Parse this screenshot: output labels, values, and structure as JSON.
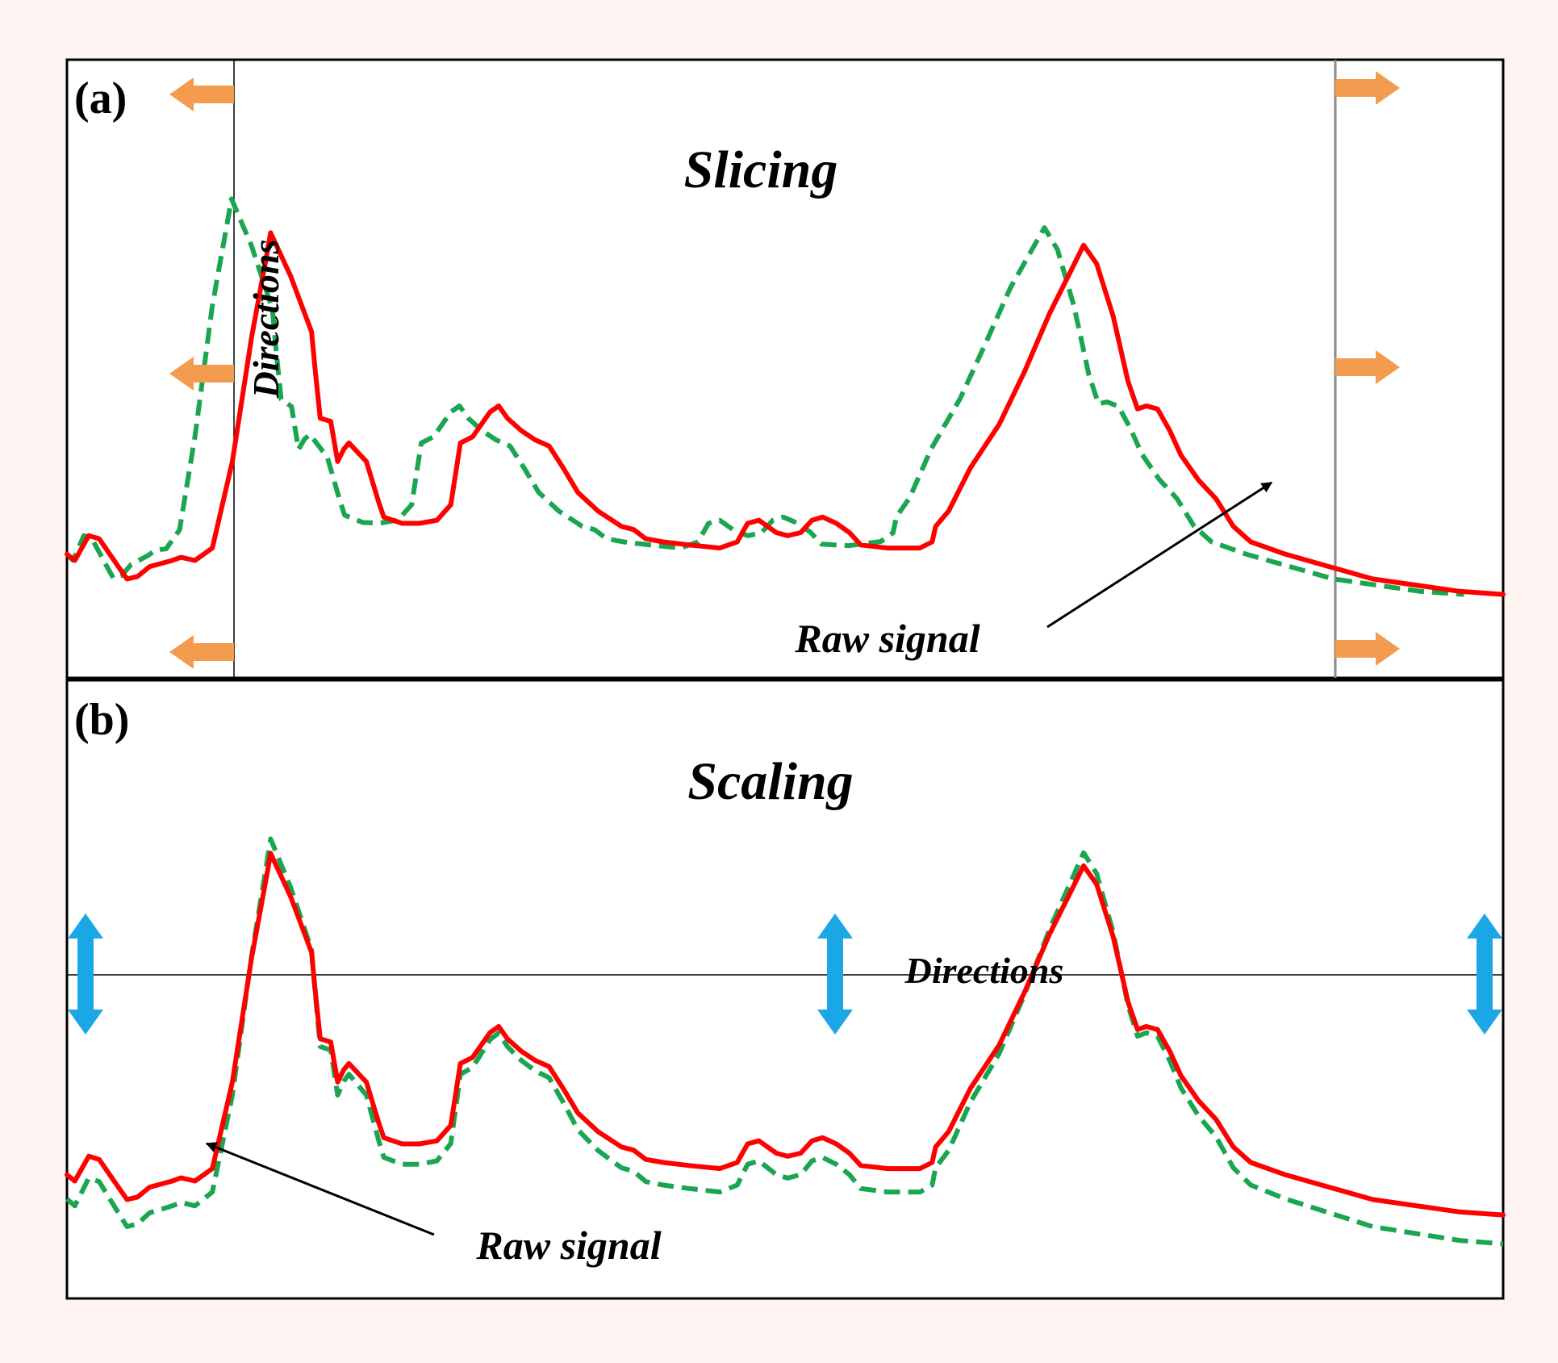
{
  "colors": {
    "background": "#fdf3f1",
    "raw_signal": "#ff0000",
    "augmented_signal": "#1aa650",
    "slicing_arrows": "#f39c50",
    "scaling_arrows": "#1ba6e6"
  },
  "panel_a": {
    "label": "(a)",
    "title": "Slicing",
    "directions_label": "Directions",
    "raw_signal_label": "Raw signal",
    "arrow_icon": "horizontal-arrow-icon"
  },
  "panel_b": {
    "label": "(b)",
    "title": "Scaling",
    "directions_label": "Directions",
    "raw_signal_label": "Raw signal",
    "arrow_icon": "vertical-double-arrow-icon"
  },
  "raw_signal_profile": [
    [
      0,
      0.8
    ],
    [
      0.9,
      0.81
    ],
    [
      2.5,
      0.77
    ],
    [
      3.7,
      0.775
    ],
    [
      5.9,
      0.82
    ],
    [
      6.9,
      0.84
    ],
    [
      8.1,
      0.836
    ],
    [
      9.5,
      0.82
    ],
    [
      12.1,
      0.81
    ],
    [
      13.1,
      0.805
    ],
    [
      14.7,
      0.81
    ],
    [
      16.7,
      0.79
    ],
    [
      19.0,
      0.65
    ],
    [
      21.2,
      0.45
    ],
    [
      22.9,
      0.32
    ],
    [
      23.4,
      0.28
    ],
    [
      25.7,
      0.35
    ],
    [
      28.1,
      0.44
    ],
    [
      28.5,
      0.5
    ],
    [
      29.1,
      0.58
    ],
    [
      30.3,
      0.585
    ],
    [
      31.1,
      0.65
    ],
    [
      31.8,
      0.63
    ],
    [
      32.4,
      0.62
    ],
    [
      34.4,
      0.65
    ],
    [
      35.8,
      0.715
    ],
    [
      36.4,
      0.74
    ],
    [
      38.5,
      0.75
    ],
    [
      40.5,
      0.75
    ],
    [
      42.5,
      0.745
    ],
    [
      44.1,
      0.72
    ],
    [
      45.2,
      0.62
    ],
    [
      46.6,
      0.61
    ],
    [
      48.6,
      0.57
    ],
    [
      49.6,
      0.56
    ],
    [
      50.6,
      0.58
    ],
    [
      52.2,
      0.6
    ],
    [
      53.8,
      0.615
    ],
    [
      55.4,
      0.625
    ],
    [
      57.0,
      0.66
    ],
    [
      58.7,
      0.7
    ],
    [
      61.0,
      0.73
    ],
    [
      63.7,
      0.755
    ],
    [
      65.1,
      0.76
    ],
    [
      66.5,
      0.775
    ],
    [
      68.5,
      0.78
    ],
    [
      71.5,
      0.785
    ],
    [
      75.0,
      0.79
    ],
    [
      77.0,
      0.78
    ],
    [
      78.2,
      0.75
    ],
    [
      79.5,
      0.745
    ],
    [
      81.5,
      0.765
    ],
    [
      82.8,
      0.77
    ],
    [
      84.3,
      0.765
    ],
    [
      85.6,
      0.745
    ],
    [
      86.8,
      0.74
    ],
    [
      88.4,
      0.75
    ],
    [
      89.9,
      0.765
    ],
    [
      91.2,
      0.785
    ],
    [
      94.3,
      0.79
    ],
    [
      98.0,
      0.79
    ],
    [
      99.4,
      0.78
    ],
    [
      99.8,
      0.755
    ],
    [
      101.3,
      0.73
    ],
    [
      103.8,
      0.66
    ],
    [
      107.1,
      0.59
    ],
    [
      110.0,
      0.505
    ],
    [
      112.9,
      0.41
    ],
    [
      115.4,
      0.34
    ],
    [
      116.8,
      0.3
    ],
    [
      118.3,
      0.33
    ],
    [
      120.2,
      0.415
    ],
    [
      121.9,
      0.52
    ],
    [
      123.0,
      0.565
    ],
    [
      124.0,
      0.56
    ],
    [
      125.3,
      0.565
    ],
    [
      126.7,
      0.6
    ],
    [
      128.0,
      0.64
    ],
    [
      130.0,
      0.68
    ],
    [
      132.0,
      0.71
    ],
    [
      134.0,
      0.755
    ],
    [
      136.0,
      0.78
    ],
    [
      140.0,
      0.8
    ],
    [
      145.0,
      0.82
    ],
    [
      150.0,
      0.84
    ],
    [
      155.0,
      0.85
    ],
    [
      160.0,
      0.86
    ],
    [
      165.0,
      0.865
    ]
  ]
}
